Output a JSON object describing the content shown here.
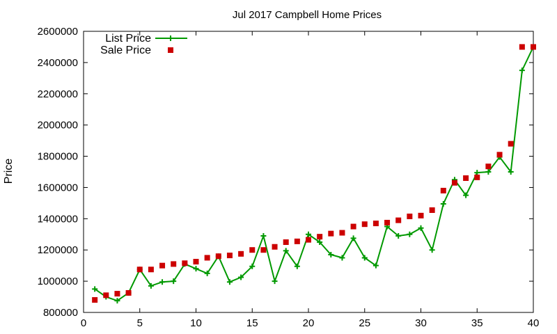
{
  "chart_data": {
    "type": "line",
    "title": "Jul 2017 Campbell Home Prices",
    "xlabel": "",
    "ylabel": "Price",
    "xlim": [
      0,
      40
    ],
    "ylim": [
      800000,
      2600000
    ],
    "xticks": [
      0,
      5,
      10,
      15,
      20,
      25,
      30,
      35,
      40
    ],
    "yticks": [
      800000,
      1000000,
      1200000,
      1400000,
      1600000,
      1800000,
      2000000,
      2200000,
      2400000,
      2600000
    ],
    "grid": false,
    "legend_position": "top-left",
    "x": [
      1,
      2,
      3,
      4,
      5,
      6,
      7,
      8,
      9,
      10,
      11,
      12,
      13,
      14,
      15,
      16,
      17,
      18,
      19,
      20,
      21,
      22,
      23,
      24,
      25,
      26,
      27,
      28,
      29,
      30,
      31,
      32,
      33,
      34,
      35,
      36,
      37,
      38,
      39,
      40
    ],
    "series": [
      {
        "name": "List Price",
        "style": "line+cross",
        "color": "#009900",
        "values": [
          950000,
          900000,
          875000,
          925000,
          1075000,
          970000,
          995000,
          1000000,
          1110000,
          1080000,
          1050000,
          1160000,
          995000,
          1025000,
          1095000,
          1290000,
          1000000,
          1195000,
          1095000,
          1300000,
          1250000,
          1170000,
          1150000,
          1275000,
          1150000,
          1100000,
          1350000,
          1290000,
          1300000,
          1340000,
          1200000,
          1495000,
          1650000,
          1550000,
          1695000,
          1700000,
          1795000,
          1700000,
          2350000,
          2500000
        ]
      },
      {
        "name": "Sale Price",
        "style": "square",
        "color": "#cc0000",
        "values": [
          880000,
          910000,
          920000,
          925000,
          1075000,
          1075000,
          1100000,
          1110000,
          1115000,
          1125000,
          1150000,
          1160000,
          1165000,
          1175000,
          1200000,
          1200000,
          1220000,
          1250000,
          1255000,
          1265000,
          1285000,
          1305000,
          1310000,
          1350000,
          1365000,
          1370000,
          1375000,
          1390000,
          1415000,
          1420000,
          1455000,
          1580000,
          1630000,
          1660000,
          1665000,
          1735000,
          1810000,
          1880000,
          2500000,
          2500000
        ]
      }
    ]
  }
}
